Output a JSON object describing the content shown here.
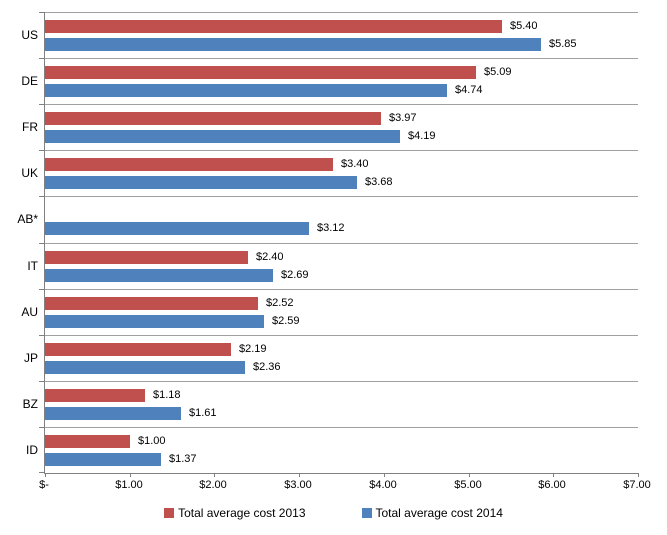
{
  "chart_data": {
    "type": "bar",
    "orientation": "horizontal",
    "title": "",
    "xlabel": "",
    "ylabel": "",
    "xlim": [
      0,
      7
    ],
    "x_tick_step": 1,
    "x_tick_labels": [
      "$-",
      "$1.00",
      "$2.00",
      "$3.00",
      "$4.00",
      "$5.00",
      "$6.00",
      "$7.00"
    ],
    "grid": "horizontal-category-separators",
    "legend_position": "bottom",
    "categories": [
      "US",
      "DE",
      "FR",
      "UK",
      "AB*",
      "IT",
      "AU",
      "JP",
      "BZ",
      "ID"
    ],
    "series": [
      {
        "name": "Total average cost 2013",
        "color": "#C0504D",
        "values": [
          5.4,
          5.09,
          3.97,
          3.4,
          null,
          2.4,
          2.52,
          2.19,
          1.18,
          1.0
        ],
        "labels": [
          "$5.40",
          "$5.09",
          "$3.97",
          "$3.40",
          "",
          "$2.40",
          "$2.52",
          "$2.19",
          "$1.18",
          "$1.00"
        ]
      },
      {
        "name": "Total average cost 2014",
        "color": "#4F81BD",
        "values": [
          5.85,
          4.74,
          4.19,
          3.68,
          3.12,
          2.69,
          2.59,
          2.36,
          1.61,
          1.37
        ],
        "labels": [
          "$5.85",
          "$4.74",
          "$4.19",
          "$3.68",
          "$3.12",
          "$2.69",
          "$2.59",
          "$2.36",
          "$1.61",
          "$1.37"
        ]
      }
    ],
    "colors": {
      "gridline": "#a0a0a0",
      "axis": "#808080",
      "text": "#000000"
    }
  }
}
